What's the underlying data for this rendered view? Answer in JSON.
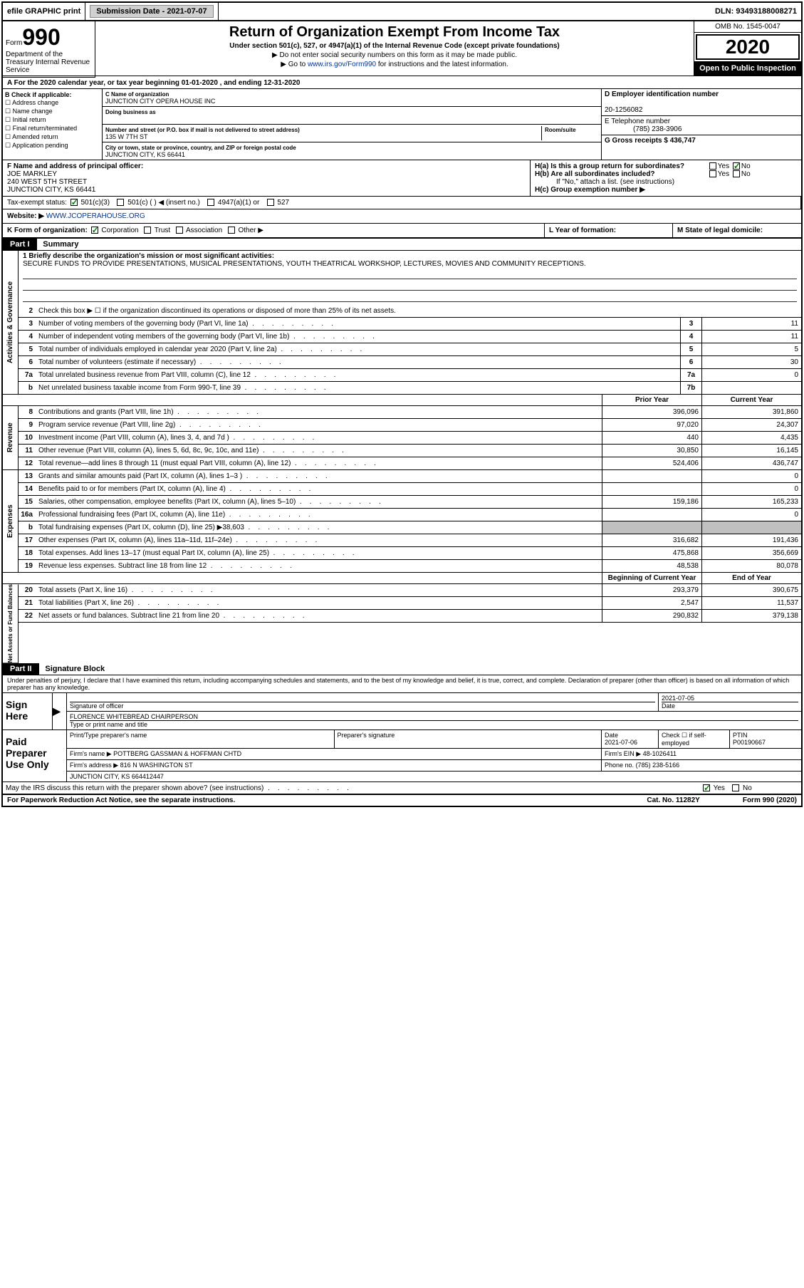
{
  "topbar": {
    "efile": "efile GRAPHIC print",
    "submission_label": "Submission Date - 2021-07-07",
    "dln": "DLN: 93493188008271"
  },
  "header": {
    "form_label": "Form",
    "form_num": "990",
    "title": "Return of Organization Exempt From Income Tax",
    "subtitle": "Under section 501(c), 527, or 4947(a)(1) of the Internal Revenue Code (except private foundations)",
    "note1": "▶ Do not enter social security numbers on this form as it may be made public.",
    "note2_pre": "▶ Go to ",
    "note2_link": "www.irs.gov/Form990",
    "note2_post": " for instructions and the latest information.",
    "omb": "OMB No. 1545-0047",
    "year": "2020",
    "public": "Open to Public Inspection",
    "dept": "Department of the Treasury Internal Revenue Service"
  },
  "period": "A For the 2020 calendar year, or tax year beginning 01-01-2020   , and ending 12-31-2020",
  "section_b": {
    "label": "B Check if applicable:",
    "opts": [
      "Address change",
      "Name change",
      "Initial return",
      "Final return/terminated",
      "Amended return",
      "Application pending"
    ]
  },
  "section_c": {
    "name_lbl": "C Name of organization",
    "name": "JUNCTION CITY OPERA HOUSE INC",
    "dba_lbl": "Doing business as",
    "dba": "",
    "addr_lbl": "Number and street (or P.O. box if mail is not delivered to street address)",
    "room_lbl": "Room/suite",
    "addr": "135 W 7TH ST",
    "city_lbl": "City or town, state or province, country, and ZIP or foreign postal code",
    "city": "JUNCTION CITY, KS  66441"
  },
  "section_d": {
    "ein_lbl": "D Employer identification number",
    "ein": "20-1256082",
    "phone_lbl": "E Telephone number",
    "phone": "(785) 238-3906",
    "gross_lbl": "G Gross receipts $ 436,747"
  },
  "section_f": {
    "lbl": "F  Name and address of principal officer:",
    "name": "JOE MARKLEY",
    "addr1": "240 WEST 5TH STREET",
    "addr2": "JUNCTION CITY, KS  66441"
  },
  "section_h": {
    "ha": "H(a)  Is this a group return for subordinates?",
    "hb": "H(b)  Are all subordinates included?",
    "hb_note": "If \"No,\" attach a list. (see instructions)",
    "hc": "H(c)  Group exemption number ▶"
  },
  "tax_status": {
    "lbl": "Tax-exempt status:",
    "opts": [
      "501(c)(3)",
      "501(c) (  ) ◀ (insert no.)",
      "4947(a)(1) or",
      "527"
    ]
  },
  "website": {
    "lbl": "Website: ▶",
    "val": "WWW.JCOPERAHOUSE.ORG"
  },
  "section_k": "K Form of organization:",
  "k_opts": [
    "Corporation",
    "Trust",
    "Association",
    "Other ▶"
  ],
  "section_l": "L Year of formation:",
  "section_m": "M State of legal domicile:",
  "part1": {
    "hdr": "Part I",
    "title": "Summary"
  },
  "mission_lbl": "1  Briefly describe the organization's mission or most significant activities:",
  "mission": "SECURE FUNDS TO PROVIDE PRESENTATIONS, MUSICAL PRESENTATIONS, YOUTH THEATRICAL WORKSHOP, LECTURES, MOVIES AND COMMUNITY RECEPTIONS.",
  "line2": "Check this box ▶ ☐  if the organization discontinued its operations or disposed of more than 25% of its net assets.",
  "governance_lines": [
    {
      "n": "3",
      "t": "Number of voting members of the governing body (Part VI, line 1a)",
      "b": "3",
      "v": "11"
    },
    {
      "n": "4",
      "t": "Number of independent voting members of the governing body (Part VI, line 1b)",
      "b": "4",
      "v": "11"
    },
    {
      "n": "5",
      "t": "Total number of individuals employed in calendar year 2020 (Part V, line 2a)",
      "b": "5",
      "v": "5"
    },
    {
      "n": "6",
      "t": "Total number of volunteers (estimate if necessary)",
      "b": "6",
      "v": "30"
    },
    {
      "n": "7a",
      "t": "Total unrelated business revenue from Part VIII, column (C), line 12",
      "b": "7a",
      "v": "0"
    },
    {
      "n": "b",
      "t": "Net unrelated business taxable income from Form 990-T, line 39",
      "b": "7b",
      "v": ""
    }
  ],
  "col_prior": "Prior Year",
  "col_current": "Current Year",
  "revenue_lines": [
    {
      "n": "8",
      "t": "Contributions and grants (Part VIII, line 1h)",
      "p": "396,096",
      "c": "391,860"
    },
    {
      "n": "9",
      "t": "Program service revenue (Part VIII, line 2g)",
      "p": "97,020",
      "c": "24,307"
    },
    {
      "n": "10",
      "t": "Investment income (Part VIII, column (A), lines 3, 4, and 7d )",
      "p": "440",
      "c": "4,435"
    },
    {
      "n": "11",
      "t": "Other revenue (Part VIII, column (A), lines 5, 6d, 8c, 9c, 10c, and 11e)",
      "p": "30,850",
      "c": "16,145"
    },
    {
      "n": "12",
      "t": "Total revenue—add lines 8 through 11 (must equal Part VIII, column (A), line 12)",
      "p": "524,406",
      "c": "436,747"
    }
  ],
  "expense_lines": [
    {
      "n": "13",
      "t": "Grants and similar amounts paid (Part IX, column (A), lines 1–3 )",
      "p": "",
      "c": "0"
    },
    {
      "n": "14",
      "t": "Benefits paid to or for members (Part IX, column (A), line 4)",
      "p": "",
      "c": "0"
    },
    {
      "n": "15",
      "t": "Salaries, other compensation, employee benefits (Part IX, column (A), lines 5–10)",
      "p": "159,186",
      "c": "165,233"
    },
    {
      "n": "16a",
      "t": "Professional fundraising fees (Part IX, column (A), line 11e)",
      "p": "",
      "c": "0"
    },
    {
      "n": "b",
      "t": "Total fundraising expenses (Part IX, column (D), line 25) ▶38,603",
      "p": "grey",
      "c": "grey"
    },
    {
      "n": "17",
      "t": "Other expenses (Part IX, column (A), lines 11a–11d, 11f–24e)",
      "p": "316,682",
      "c": "191,436"
    },
    {
      "n": "18",
      "t": "Total expenses. Add lines 13–17 (must equal Part IX, column (A), line 25)",
      "p": "475,868",
      "c": "356,669"
    },
    {
      "n": "19",
      "t": "Revenue less expenses. Subtract line 18 from line 12",
      "p": "48,538",
      "c": "80,078"
    }
  ],
  "col_begin": "Beginning of Current Year",
  "col_end": "End of Year",
  "netasset_lines": [
    {
      "n": "20",
      "t": "Total assets (Part X, line 16)",
      "p": "293,379",
      "c": "390,675"
    },
    {
      "n": "21",
      "t": "Total liabilities (Part X, line 26)",
      "p": "2,547",
      "c": "11,537"
    },
    {
      "n": "22",
      "t": "Net assets or fund balances. Subtract line 21 from line 20",
      "p": "290,832",
      "c": "379,138"
    }
  ],
  "vtabs": {
    "gov": "Activities & Governance",
    "rev": "Revenue",
    "exp": "Expenses",
    "net": "Net Assets or Fund Balances"
  },
  "part2": {
    "hdr": "Part II",
    "title": "Signature Block"
  },
  "sig_decl": "Under penalties of perjury, I declare that I have examined this return, including accompanying schedules and statements, and to the best of my knowledge and belief, it is true, correct, and complete. Declaration of preparer (other than officer) is based on all information of which preparer has any knowledge.",
  "sign_here": "Sign Here",
  "sig_officer_lbl": "Signature of officer",
  "sig_date_lbl": "Date",
  "sig_date": "2021-07-05",
  "sig_name": "FLORENCE WHITEBREAD  CHAIRPERSON",
  "sig_name_lbl": "Type or print name and title",
  "paid_prep": "Paid Preparer Use Only",
  "prep_name_lbl": "Print/Type preparer's name",
  "prep_sig_lbl": "Preparer's signature",
  "prep_date_lbl": "Date",
  "prep_date": "2021-07-06",
  "prep_check_lbl": "Check ☐ if self-employed",
  "ptin_lbl": "PTIN",
  "ptin": "P00190667",
  "firm_name_lbl": "Firm's name      ▶",
  "firm_name": "POTTBERG GASSMAN & HOFFMAN CHTD",
  "firm_ein_lbl": "Firm's EIN ▶",
  "firm_ein": "48-1026411",
  "firm_addr_lbl": "Firm's address ▶",
  "firm_addr": "816 N WASHINGTON ST",
  "firm_city": "JUNCTION CITY, KS  664412447",
  "firm_phone_lbl": "Phone no.",
  "firm_phone": "(785) 238-5166",
  "irs_discuss": "May the IRS discuss this return with the preparer shown above? (see instructions)",
  "footer": {
    "left": "For Paperwork Reduction Act Notice, see the separate instructions.",
    "mid": "Cat. No. 11282Y",
    "right": "Form 990 (2020)"
  }
}
